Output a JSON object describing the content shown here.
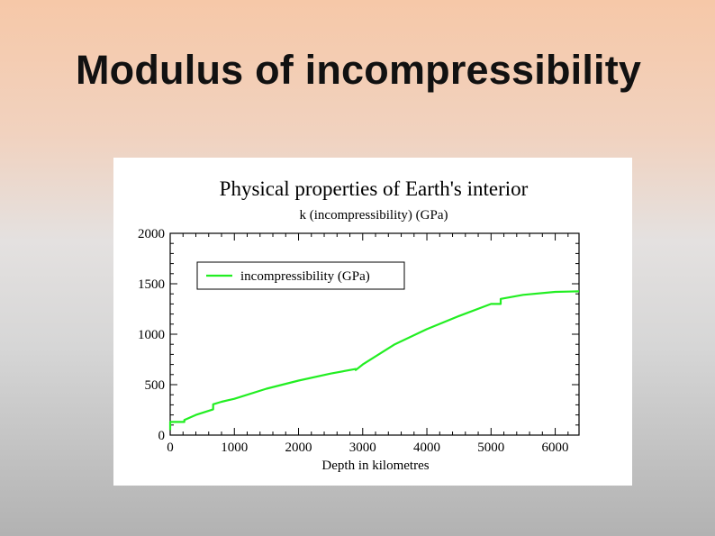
{
  "slide": {
    "title": "Modulus of incompressibility"
  },
  "chart_data": {
    "type": "line",
    "title": "Physical properties of Earth's interior",
    "subtitle": "k (incompressibility) (GPa)",
    "xlabel": "Depth in kilometres",
    "ylabel": "",
    "xlim": [
      0,
      6371
    ],
    "ylim": [
      0,
      2000
    ],
    "x_ticks": [
      "0",
      "1000",
      "2000",
      "3000",
      "4000",
      "5000",
      "6000"
    ],
    "y_ticks": [
      "0",
      "500",
      "1000",
      "1500",
      "2000"
    ],
    "legend": {
      "position": "top-left",
      "entries": [
        "incompressibility (GPa)"
      ]
    },
    "line_color": "#22ee22",
    "series": [
      {
        "name": "incompressibility (GPa)",
        "x": [
          0,
          0,
          15,
          15,
          220,
          220,
          400,
          670,
          670,
          800,
          1000,
          1500,
          2000,
          2500,
          2891,
          2891,
          3000,
          3500,
          4000,
          4500,
          5000,
          5150,
          5150,
          5500,
          6000,
          6371
        ],
        "y": [
          50,
          130,
          130,
          130,
          130,
          150,
          200,
          255,
          305,
          330,
          360,
          460,
          540,
          610,
          655,
          645,
          700,
          900,
          1050,
          1180,
          1300,
          1300,
          1350,
          1390,
          1420,
          1425
        ]
      }
    ]
  }
}
